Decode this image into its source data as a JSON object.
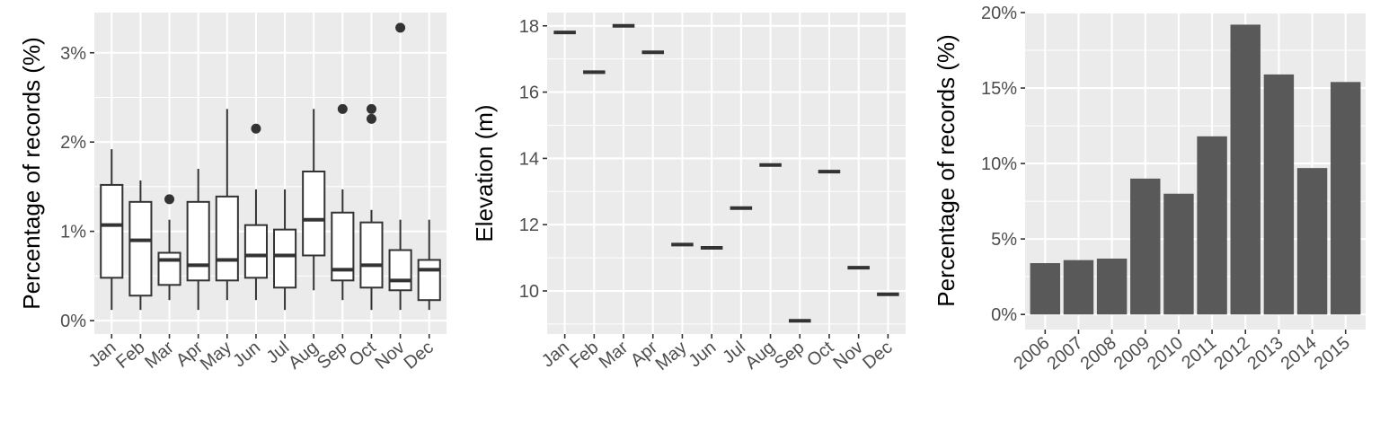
{
  "colors": {
    "panel_background": "#ebebeb",
    "grid": "#ffffff",
    "box_outline": "#333333",
    "box_fill": "#ffffff",
    "bar_fill": "#595959",
    "tick_text": "#4d4d4d",
    "axis_title": "#000000"
  },
  "chart_data": [
    {
      "type": "boxplot",
      "title": "",
      "xlabel": "",
      "ylabel": "Percentage of records (%)",
      "ylim": [
        -0.0015,
        0.0345
      ],
      "yticks": [
        0,
        0.01,
        0.02,
        0.03
      ],
      "ytick_labels": [
        "0%",
        "1%",
        "2%",
        "3%"
      ],
      "grid": true,
      "categories": [
        "Jan",
        "Feb",
        "Mar",
        "Apr",
        "May",
        "Jun",
        "Jul",
        "Aug",
        "Sep",
        "Oct",
        "Nov",
        "Dec"
      ],
      "boxes": [
        {
          "category": "Jan",
          "whisker_low": 0.0012,
          "q1": 0.0048,
          "median": 0.0107,
          "q3": 0.0152,
          "whisker_high": 0.0192,
          "outliers": []
        },
        {
          "category": "Feb",
          "whisker_low": 0.0012,
          "q1": 0.0028,
          "median": 0.009,
          "q3": 0.0133,
          "whisker_high": 0.0157,
          "outliers": []
        },
        {
          "category": "Mar",
          "whisker_low": 0.0023,
          "q1": 0.004,
          "median": 0.0068,
          "q3": 0.0076,
          "whisker_high": 0.0113,
          "outliers": [
            0.0136
          ]
        },
        {
          "category": "Apr",
          "whisker_low": 0.0012,
          "q1": 0.0045,
          "median": 0.0062,
          "q3": 0.0133,
          "whisker_high": 0.017,
          "outliers": []
        },
        {
          "category": "May",
          "whisker_low": 0.0023,
          "q1": 0.0045,
          "median": 0.0068,
          "q3": 0.0139,
          "whisker_high": 0.0237,
          "outliers": []
        },
        {
          "category": "Jun",
          "whisker_low": 0.0023,
          "q1": 0.0048,
          "median": 0.0073,
          "q3": 0.0107,
          "whisker_high": 0.0147,
          "outliers": [
            0.0215
          ]
        },
        {
          "category": "Jul",
          "whisker_low": 0.0012,
          "q1": 0.0037,
          "median": 0.0073,
          "q3": 0.0102,
          "whisker_high": 0.0147,
          "outliers": []
        },
        {
          "category": "Aug",
          "whisker_low": 0.0034,
          "q1": 0.0073,
          "median": 0.0113,
          "q3": 0.0167,
          "whisker_high": 0.0237,
          "outliers": []
        },
        {
          "category": "Sep",
          "whisker_low": 0.0023,
          "q1": 0.0045,
          "median": 0.0057,
          "q3": 0.0121,
          "whisker_high": 0.0147,
          "outliers": [
            0.0237
          ]
        },
        {
          "category": "Oct",
          "whisker_low": 0.0012,
          "q1": 0.0037,
          "median": 0.0062,
          "q3": 0.011,
          "whisker_high": 0.0124,
          "outliers": [
            0.0226,
            0.0237
          ]
        },
        {
          "category": "Nov",
          "whisker_low": 0.0012,
          "q1": 0.0034,
          "median": 0.0045,
          "q3": 0.0079,
          "whisker_high": 0.0113,
          "outliers": [
            0.0328
          ]
        },
        {
          "category": "Dec",
          "whisker_low": 0.0012,
          "q1": 0.0023,
          "median": 0.0057,
          "q3": 0.0068,
          "whisker_high": 0.0113,
          "outliers": []
        }
      ]
    },
    {
      "type": "boxplot",
      "title": "",
      "xlabel": "",
      "ylabel": "Elevation (m)",
      "ylim": [
        8.7,
        18.4
      ],
      "yticks": [
        10,
        12,
        14,
        16,
        18
      ],
      "ytick_labels": [
        "10",
        "12",
        "14",
        "16",
        "18"
      ],
      "grid": true,
      "categories": [
        "Jan",
        "Feb",
        "Mar",
        "Apr",
        "May",
        "Jun",
        "Jul",
        "Aug",
        "Sep",
        "Oct",
        "Nov",
        "Dec"
      ],
      "values": [
        17.8,
        16.6,
        18.0,
        17.2,
        11.4,
        11.3,
        12.5,
        13.8,
        9.1,
        13.6,
        10.7,
        9.9
      ]
    },
    {
      "type": "bar",
      "title": "",
      "xlabel": "",
      "ylabel": "Percentage of records (%)",
      "ylim": [
        -0.01,
        0.2
      ],
      "yticks": [
        0,
        0.05,
        0.1,
        0.15,
        0.2
      ],
      "ytick_labels": [
        "0%",
        "5%",
        "10%",
        "15%",
        "20%"
      ],
      "grid": true,
      "categories": [
        "2006",
        "2007",
        "2008",
        "2009",
        "2010",
        "2011",
        "2012",
        "2013",
        "2014",
        "2015"
      ],
      "values": [
        0.034,
        0.036,
        0.037,
        0.09,
        0.08,
        0.118,
        0.192,
        0.159,
        0.097,
        0.154
      ]
    }
  ]
}
